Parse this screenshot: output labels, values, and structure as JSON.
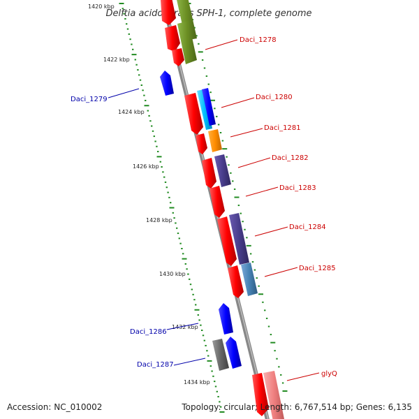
{
  "title": "Delftia acidovorans SPH-1, complete genome",
  "footer": {
    "accession": "Accession: NC_010002",
    "summary": "Topology: circular; Length: 6,767,514 bp; Genes: 6,135"
  },
  "kbp_ticks": [
    "1420 kbp",
    "1422 kbp",
    "1424 kbp",
    "1426 kbp",
    "1428 kbp",
    "1430 kbp",
    "1432 kbp",
    "1434 kbp"
  ],
  "gene_labels": [
    "Daci_1278",
    "Daci_1279",
    "Daci_1280",
    "Daci_1281",
    "Daci_1282",
    "Daci_1283",
    "Daci_1284",
    "Daci_1285",
    "Daci_1286",
    "Daci_1287",
    "glyQ"
  ],
  "colors": {
    "forward_cds": "#ff0000",
    "reverse_cds": "#0000ff",
    "forward_label": "#cc0000",
    "reverse_label": "#0000aa",
    "backbone": "#888888",
    "tick": "#228b22"
  }
}
